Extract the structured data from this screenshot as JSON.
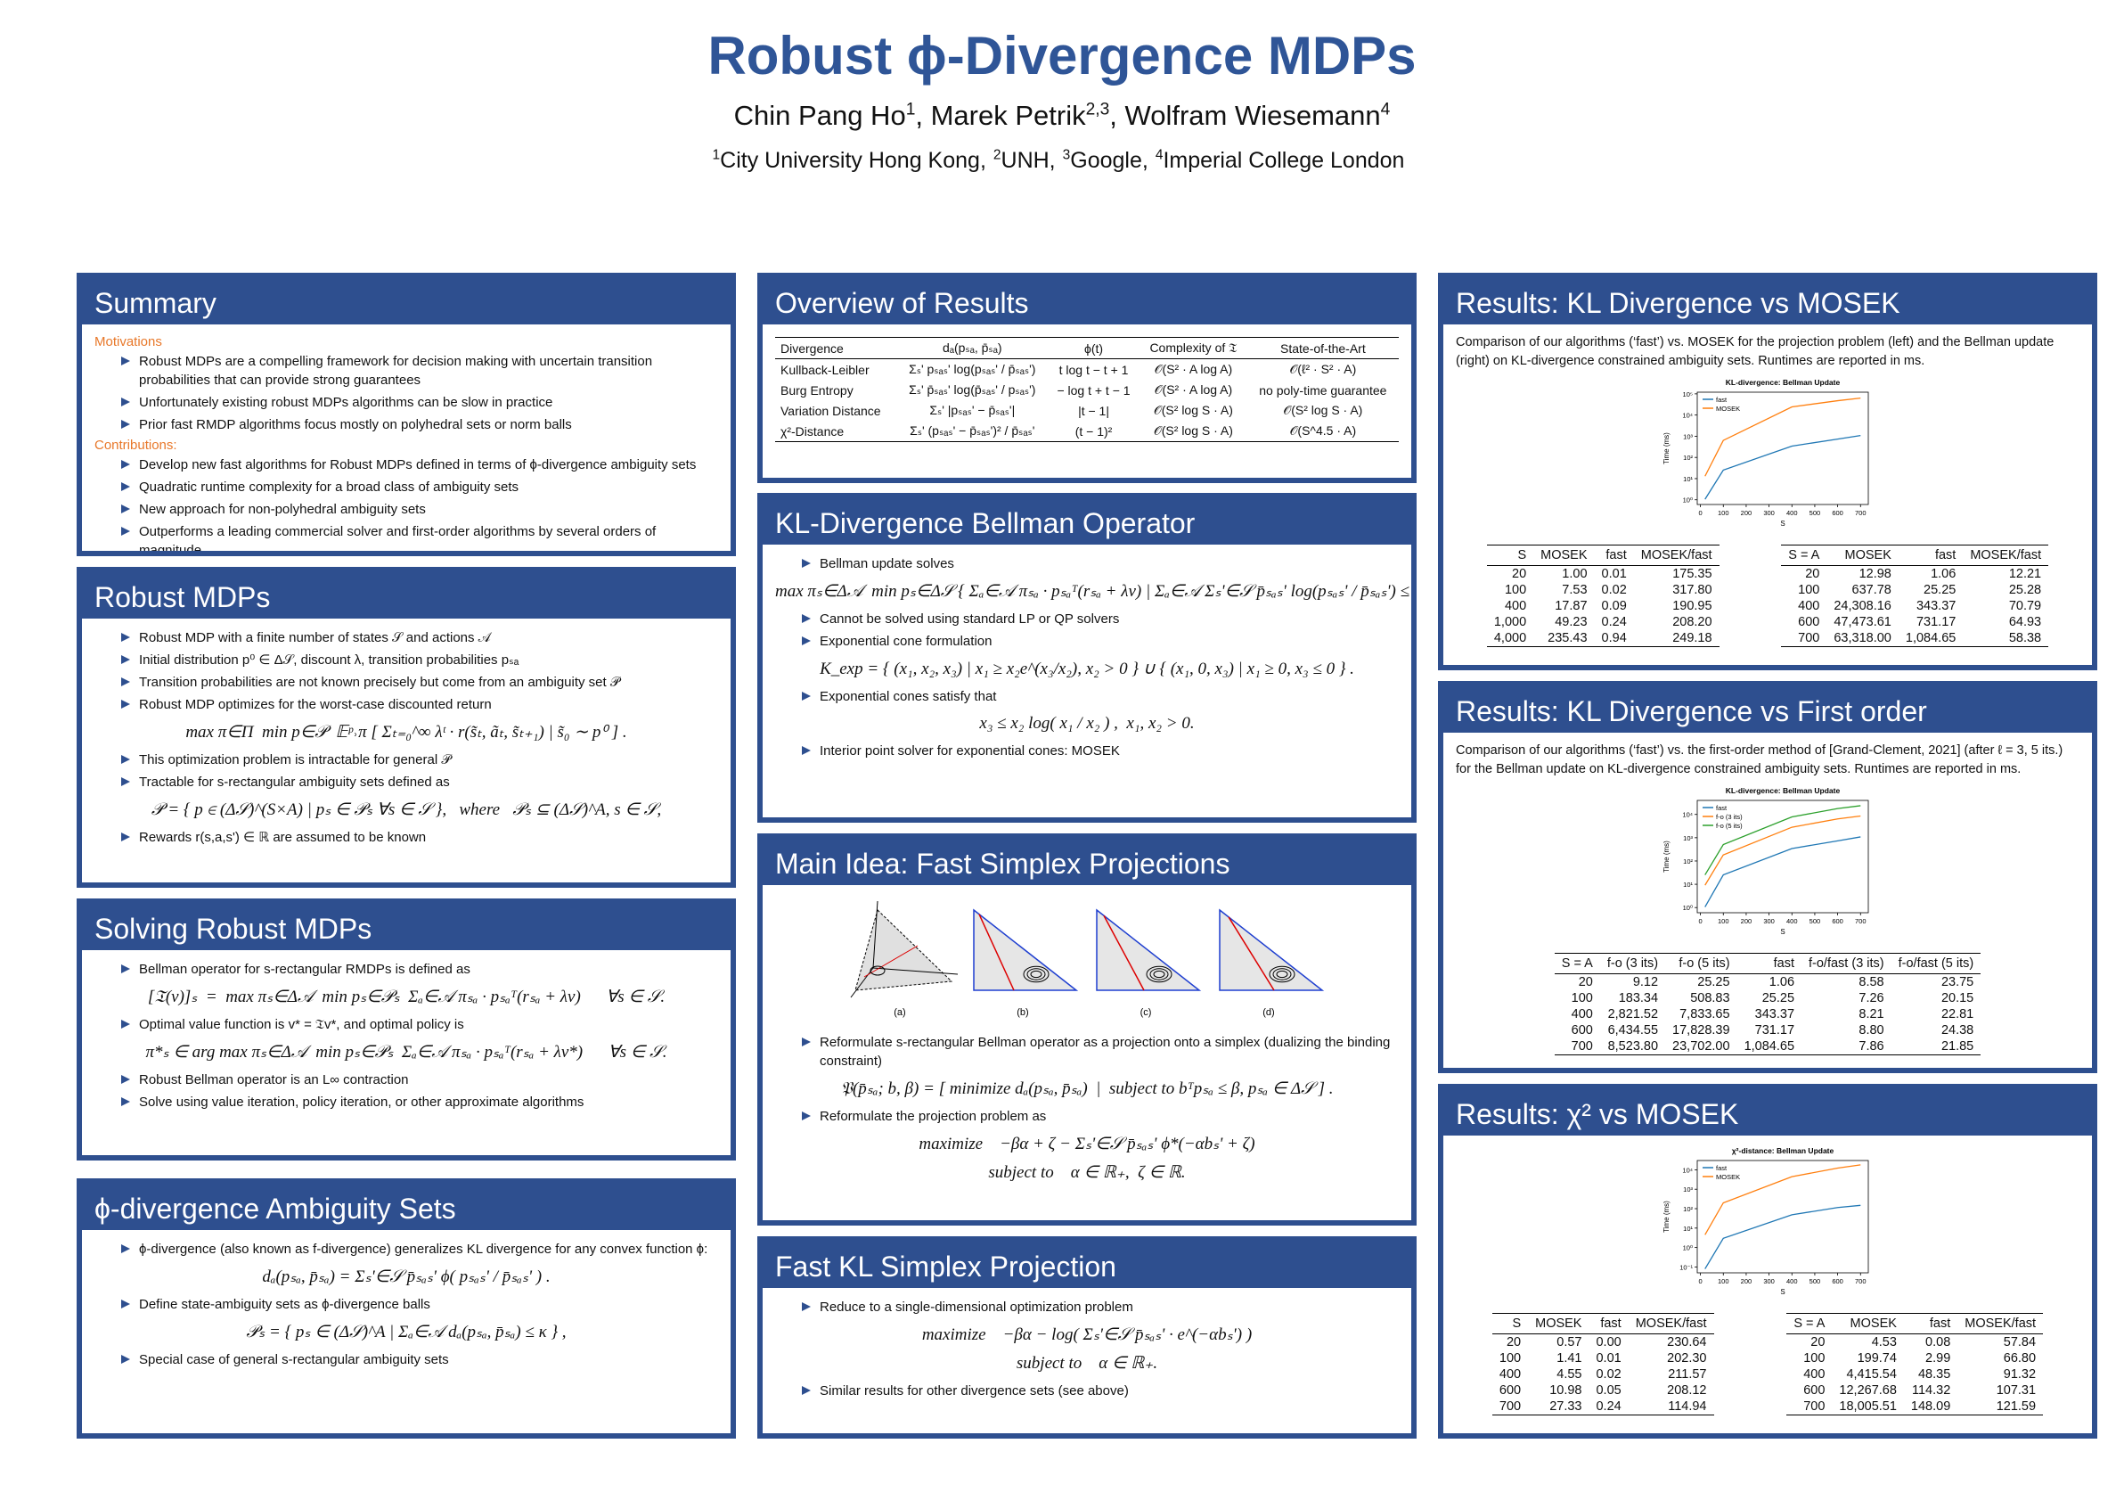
{
  "header": {
    "title": "Robust ϕ-Divergence MDPs",
    "authors": [
      {
        "text": "Chin Pang Ho",
        "sup": "1"
      },
      {
        "text": ", Marek Petrik",
        "sup": "2,3"
      },
      {
        "text": ", Wolfram Wiesemann",
        "sup": "4"
      }
    ],
    "affiliations": [
      {
        "sup": "1",
        "text": "City University Hong Kong,"
      },
      {
        "sup": "2",
        "text": "UNH,"
      },
      {
        "sup": "3",
        "text": "Google,"
      },
      {
        "sup": "4",
        "text": "Imperial College London"
      }
    ]
  },
  "sections": [
    {
      "title": "Summary",
      "items": [
        {
          "heading": "Motivations"
        },
        {
          "bullet": "Robust MDPs are a compelling framework for decision making with uncertain transition probabilities that can provide strong guarantees"
        },
        {
          "bullet": "Unfortunately existing robust MDPs algorithms can be slow in practice"
        },
        {
          "bullet": "Prior fast RMDP algorithms focus mostly on polyhedral sets or norm balls"
        },
        {
          "heading": "Contributions:"
        },
        {
          "bullet": "Develop new fast algorithms for Robust MDPs defined in terms of ϕ-divergence ambiguity sets"
        },
        {
          "bullet": "Quadratic runtime complexity for a broad class of ambiguity sets"
        },
        {
          "bullet": "New approach for non-polyhedral ambiguity sets"
        },
        {
          "bullet": "Outperforms a leading commercial solver and first-order algorithms by several orders of magnitude"
        }
      ]
    },
    {
      "title": "Robust MDPs",
      "items": [
        {
          "bullet": "Robust MDP with a finite number of states 𝒮 and actions 𝒜"
        },
        {
          "bullet": "Initial distribution p⁰ ∈ Δ𝒮, discount λ, transition probabilities pₛₐ"
        },
        {
          "bullet": "Transition probabilities are not known precisely but come from an ambiguity set 𝒫"
        },
        {
          "bullet": "Robust MDP optimizes for the worst-case discounted return"
        },
        {
          "math": "max π∈Π  min p∈𝒫  𝔼ᵖ˒π [ Σₜ₌₀^∞ λᵗ · r(s̃ₜ, ãₜ, s̃ₜ₊₁) | s̃₀ ∼ p⁰ ] ."
        },
        {
          "bullet": "This optimization problem is intractable for general 𝒫"
        },
        {
          "bullet": "Tractable for s-rectangular ambiguity sets defined as"
        },
        {
          "math": "𝒫 = { p ∈ (Δ𝒮)^(S×A) | pₛ ∈ 𝒫ₛ ∀s ∈ 𝒮 },   where   𝒫ₛ ⊆ (Δ𝒮)^A, s ∈ 𝒮,"
        },
        {
          "bullet": "Rewards r(s,a,s') ∈ ℝ are assumed to be known"
        }
      ]
    },
    {
      "title": "Solving Robust MDPs",
      "items": [
        {
          "bullet": "Bellman operator for s-rectangular RMDPs is defined as"
        },
        {
          "math": "[𝔗(v)]ₛ  =  max πₛ∈Δ𝒜  min pₛ∈𝒫ₛ  Σₐ∈𝒜 πₛₐ · pₛₐᵀ(rₛₐ + λv)      ∀s ∈ 𝒮."
        },
        {
          "bullet": "Optimal value function is v* = 𝔗v*, and optimal policy is"
        },
        {
          "math": "π*ₛ ∈ arg max πₛ∈Δ𝒜  min pₛ∈𝒫ₛ  Σₐ∈𝒜 πₛₐ · pₛₐᵀ(rₛₐ + λv*)      ∀s ∈ 𝒮."
        },
        {
          "bullet": "Robust Bellman operator is an L∞ contraction"
        },
        {
          "bullet": "Solve using value iteration, policy iteration, or other approximate algorithms"
        }
      ]
    },
    {
      "title": "ϕ-divergence Ambiguity Sets",
      "items": [
        {
          "bullet": "ϕ-divergence (also known as f-divergence) generalizes KL divergence for any convex function ϕ:"
        },
        {
          "math": "dₐ(pₛₐ, p̄ₛₐ) = Σₛ'∈𝒮 p̄ₛₐₛ' ϕ( pₛₐₛ' / p̄ₛₐₛ' ) ."
        },
        {
          "bullet": "Define state-ambiguity sets as ϕ-divergence balls"
        },
        {
          "math": "𝒫ₛ = { pₛ ∈ (Δ𝒮)^A | Σₐ∈𝒜 dₐ(pₛₐ, p̄ₛₐ) ≤ κ } ,"
        },
        {
          "bullet": "Special case of general s-rectangular ambiguity sets"
        }
      ]
    },
    {
      "title": "Overview of Results",
      "items": [
        {
          "tables": [
            {
              "header": [
                "Divergence",
                "dₐ(pₛₐ, p̄ₛₐ)",
                "ϕ(t)",
                "Complexity of 𝔗",
                "State-of-the-Art"
              ],
              "rows": [
                [
                  "Kullback-Leibler",
                  "Σₛ' pₛₐₛ' log(pₛₐₛ' / p̄ₛₐₛ')",
                  "t log t − t + 1",
                  "𝒪(S² · A log A)",
                  "𝒪(ℓ² · S² · A)"
                ],
                [
                  "Burg Entropy",
                  "Σₛ' p̄ₛₐₛ' log(p̄ₛₐₛ' / pₛₐₛ')",
                  "− log t + t − 1",
                  "𝒪(S² · A log A)",
                  "no poly-time guarantee"
                ],
                [
                  "Variation Distance",
                  "Σₛ' |pₛₐₛ' − p̄ₛₐₛ'|",
                  "|t − 1|",
                  "𝒪(S² log S · A)",
                  "𝒪(S² log S · A)"
                ],
                [
                  "χ²-Distance",
                  "Σₛ' (pₛₐₛ' − p̄ₛₐₛ')² / p̄ₛₐₛ'",
                  "(t − 1)²",
                  "𝒪(S² log S · A)",
                  "𝒪(S^4.5 · A)"
                ]
              ]
            }
          ]
        }
      ]
    },
    {
      "title": "KL-Divergence Bellman Operator",
      "items": [
        {
          "bullet": "Bellman update solves"
        },
        {
          "math": "max πₛ∈Δ𝒜  min pₛ∈Δ𝒮 { Σₐ∈𝒜 πₛₐ · pₛₐᵀ(rₛₐ + λv) | Σₐ∈𝒜 Σₛ'∈𝒮 p̄ₛₐₛ' log(pₛₐₛ' / p̄ₛₐₛ') ≤ κ }"
        },
        {
          "bullet": "Cannot be solved using standard LP or QP solvers"
        },
        {
          "bullet": "Exponential cone formulation"
        },
        {
          "math": "K_exp = { (x₁, x₂, x₃) | x₁ ≥ x₂e^(x₃/x₂), x₂ > 0 } ∪ { (x₁, 0, x₃) | x₁ ≥ 0, x₃ ≤ 0 } ."
        },
        {
          "bullet": "Exponential cones satisfy that"
        },
        {
          "math": "x₃ ≤ x₂ log( x₁ / x₂ ) ,  x₁, x₂ > 0."
        },
        {
          "bullet": "Interior point solver for exponential cones: MOSEK"
        }
      ]
    },
    {
      "title": "Main Idea: Fast Simplex Projections",
      "items": [
        {
          "figure": [
            "(a)",
            "(b)",
            "(c)",
            "(d)"
          ]
        },
        {
          "bullet": "Reformulate s-rectangular Bellman operator as a projection onto a simplex (dualizing the binding constraint)"
        },
        {
          "math": "𝔓(p̄ₛₐ; b, β) = [ minimize dₐ(pₛₐ, p̄ₛₐ)  |  subject to bᵀpₛₐ ≤ β, pₛₐ ∈ Δ𝒮 ] ."
        },
        {
          "bullet": "Reformulate the projection problem as"
        },
        {
          "math": "maximize    −βα + ζ − Σₛ'∈𝒮 p̄ₛₐₛ' ϕ*(−αbₛ' + ζ)"
        },
        {
          "math": "subject to    α ∈ ℝ₊,  ζ ∈ ℝ."
        }
      ]
    },
    {
      "title": "Fast KL Simplex Projection",
      "items": [
        {
          "bullet": "Reduce to a single-dimensional optimization problem"
        },
        {
          "math": "maximize    −βα − log( Σₛ'∈𝒮 p̄ₛₐₛ' · e^(−αbₛ') )"
        },
        {
          "math": "subject to    α ∈ ℝ₊."
        },
        {
          "bullet": "Similar results for other divergence sets (see above)"
        }
      ]
    },
    {
      "title": "Results: KL Divergence vs MOSEK",
      "items": [
        {
          "text": "Comparison of our algorithms (‘fast’) vs. MOSEK for the projection problem (left) and the Bellman update (right) on KL-divergence constrained ambiguity sets. Runtimes are reported in ms."
        },
        {
          "tables": [
            {
              "header": [
                "S",
                "MOSEK",
                "fast",
                "MOSEK/fast"
              ],
              "rows": [
                [
                  "20",
                  "1.00",
                  "0.01",
                  "175.35"
                ],
                [
                  "100",
                  "7.53",
                  "0.02",
                  "317.80"
                ],
                [
                  "400",
                  "17.87",
                  "0.09",
                  "190.95"
                ],
                [
                  "1,000",
                  "49.23",
                  "0.24",
                  "208.20"
                ],
                [
                  "4,000",
                  "235.43",
                  "0.94",
                  "249.18"
                ]
              ]
            },
            {
              "header": [
                "S = A",
                "MOSEK",
                "fast",
                "MOSEK/fast"
              ],
              "rows": [
                [
                  "20",
                  "12.98",
                  "1.06",
                  "12.21"
                ],
                [
                  "100",
                  "637.78",
                  "25.25",
                  "25.28"
                ],
                [
                  "400",
                  "24,308.16",
                  "343.37",
                  "70.79"
                ],
                [
                  "600",
                  "47,473.61",
                  "731.17",
                  "64.93"
                ],
                [
                  "700",
                  "63,318.00",
                  "1,084.65",
                  "58.38"
                ]
              ]
            }
          ]
        }
      ]
    },
    {
      "title": "Results: KL Divergence vs First order",
      "items": [
        {
          "text": "Comparison of our algorithms (‘fast’) vs. the first-order method of [Grand-Clement, 2021] (after ℓ = 3, 5 its.) for the Bellman update on KL-divergence constrained ambiguity sets. Runtimes are reported in ms."
        },
        {
          "tables": [
            {
              "header": [
                "S = A",
                "f-o (3 its)",
                "f-o (5 its)",
                "fast",
                "f-o/fast (3 its)",
                "f-o/fast (5 its)"
              ],
              "rows": [
                [
                  "20",
                  "9.12",
                  "25.25",
                  "1.06",
                  "8.58",
                  "23.75"
                ],
                [
                  "100",
                  "183.34",
                  "508.83",
                  "25.25",
                  "7.26",
                  "20.15"
                ],
                [
                  "400",
                  "2,821.52",
                  "7,833.65",
                  "343.37",
                  "8.21",
                  "22.81"
                ],
                [
                  "600",
                  "6,434.55",
                  "17,828.39",
                  "731.17",
                  "8.80",
                  "24.38"
                ],
                [
                  "700",
                  "8,523.80",
                  "23,702.00",
                  "1,084.65",
                  "7.86",
                  "21.85"
                ]
              ]
            }
          ]
        }
      ]
    },
    {
      "title": "Results: χ² vs MOSEK",
      "items": [
        {
          "tables": [
            {
              "header": [
                "S",
                "MOSEK",
                "fast",
                "MOSEK/fast"
              ],
              "rows": [
                [
                  "20",
                  "0.57",
                  "0.00",
                  "230.64"
                ],
                [
                  "100",
                  "1.41",
                  "0.01",
                  "202.30"
                ],
                [
                  "400",
                  "4.55",
                  "0.02",
                  "211.57"
                ],
                [
                  "600",
                  "10.98",
                  "0.05",
                  "208.12"
                ],
                [
                  "700",
                  "27.33",
                  "0.24",
                  "114.94"
                ]
              ]
            },
            {
              "header": [
                "S = A",
                "MOSEK",
                "fast",
                "MOSEK/fast"
              ],
              "rows": [
                [
                  "20",
                  "4.53",
                  "0.08",
                  "57.84"
                ],
                [
                  "100",
                  "199.74",
                  "2.99",
                  "66.80"
                ],
                [
                  "400",
                  "4,415.54",
                  "48.35",
                  "91.32"
                ],
                [
                  "600",
                  "12,267.68",
                  "114.32",
                  "107.31"
                ],
                [
                  "700",
                  "18,005.51",
                  "148.09",
                  "121.59"
                ]
              ]
            }
          ]
        }
      ]
    }
  ],
  "chart_data": [
    {
      "type": "line",
      "title": "KL-divergence: Bellman Update",
      "xlabel": "S",
      "ylabel": "Time (ms)",
      "log_y": true,
      "legend": "upper left",
      "x": [
        20,
        100,
        400,
        600,
        700
      ],
      "series": [
        {
          "name": "fast",
          "color": "#1f77b4",
          "values": [
            1.06,
            25.25,
            343.37,
            731.17,
            1084.65
          ]
        },
        {
          "name": "MOSEK",
          "color": "#ff7f0e",
          "values": [
            12.98,
            637.78,
            24308.16,
            47473.61,
            63318.0
          ]
        }
      ],
      "xlim": [
        -14,
        734
      ],
      "xticks": [
        0,
        100,
        200,
        300,
        400,
        500,
        600,
        700
      ],
      "ylim": [
        0.6,
        120000
      ],
      "yticks": [
        {
          "value": 1,
          "label": "10⁰"
        },
        {
          "value": 10,
          "label": "10¹"
        },
        {
          "value": 100,
          "label": "10²"
        },
        {
          "value": 1000,
          "label": "10³"
        },
        {
          "value": 10000,
          "label": "10⁴"
        },
        {
          "value": 100000,
          "label": "10⁵"
        }
      ]
    },
    {
      "type": "line",
      "title": "KL-divergence: Bellman Update",
      "xlabel": "S",
      "ylabel": "Time (ms)",
      "log_y": true,
      "legend": "upper left",
      "x": [
        20,
        100,
        400,
        600,
        700
      ],
      "series": [
        {
          "name": "fast",
          "color": "#1f77b4",
          "values": [
            1.06,
            25.25,
            343.37,
            731.17,
            1084.65
          ]
        },
        {
          "name": "f-o (3 its)",
          "color": "#ff7f0e",
          "values": [
            9.12,
            183.34,
            2821.52,
            6434.55,
            8523.8
          ]
        },
        {
          "name": "f-o (5 its)",
          "color": "#2ca02c",
          "values": [
            25.25,
            508.83,
            7833.65,
            17828.39,
            23702.0
          ]
        }
      ],
      "xlim": [
        -14,
        734
      ],
      "xticks": [
        0,
        100,
        200,
        300,
        400,
        500,
        600,
        700
      ],
      "ylim": [
        0.6,
        40000
      ],
      "yticks": [
        {
          "value": 1,
          "label": "10⁰"
        },
        {
          "value": 10,
          "label": "10¹"
        },
        {
          "value": 100,
          "label": "10²"
        },
        {
          "value": 1000,
          "label": "10³"
        },
        {
          "value": 10000,
          "label": "10⁴"
        }
      ]
    },
    {
      "type": "line",
      "title": "χ²-distance: Bellman Update",
      "xlabel": "S",
      "ylabel": "Time (ms)",
      "log_y": true,
      "legend": "upper left",
      "x": [
        20,
        100,
        400,
        600,
        700
      ],
      "series": [
        {
          "name": "fast",
          "color": "#1f77b4",
          "values": [
            0.08,
            2.99,
            48.35,
            114.32,
            148.09
          ]
        },
        {
          "name": "MOSEK",
          "color": "#ff7f0e",
          "values": [
            4.53,
            199.74,
            4415.54,
            12267.68,
            18005.51
          ]
        }
      ],
      "xlim": [
        -14,
        734
      ],
      "xticks": [
        0,
        100,
        200,
        300,
        400,
        500,
        600,
        700
      ],
      "ylim": [
        0.05,
        30000
      ],
      "yticks": [
        {
          "value": 0.1,
          "label": "10⁻¹"
        },
        {
          "value": 1,
          "label": "10⁰"
        },
        {
          "value": 10,
          "label": "10¹"
        },
        {
          "value": 100,
          "label": "10²"
        },
        {
          "value": 1000,
          "label": "10³"
        },
        {
          "value": 10000,
          "label": "10⁴"
        }
      ]
    }
  ]
}
